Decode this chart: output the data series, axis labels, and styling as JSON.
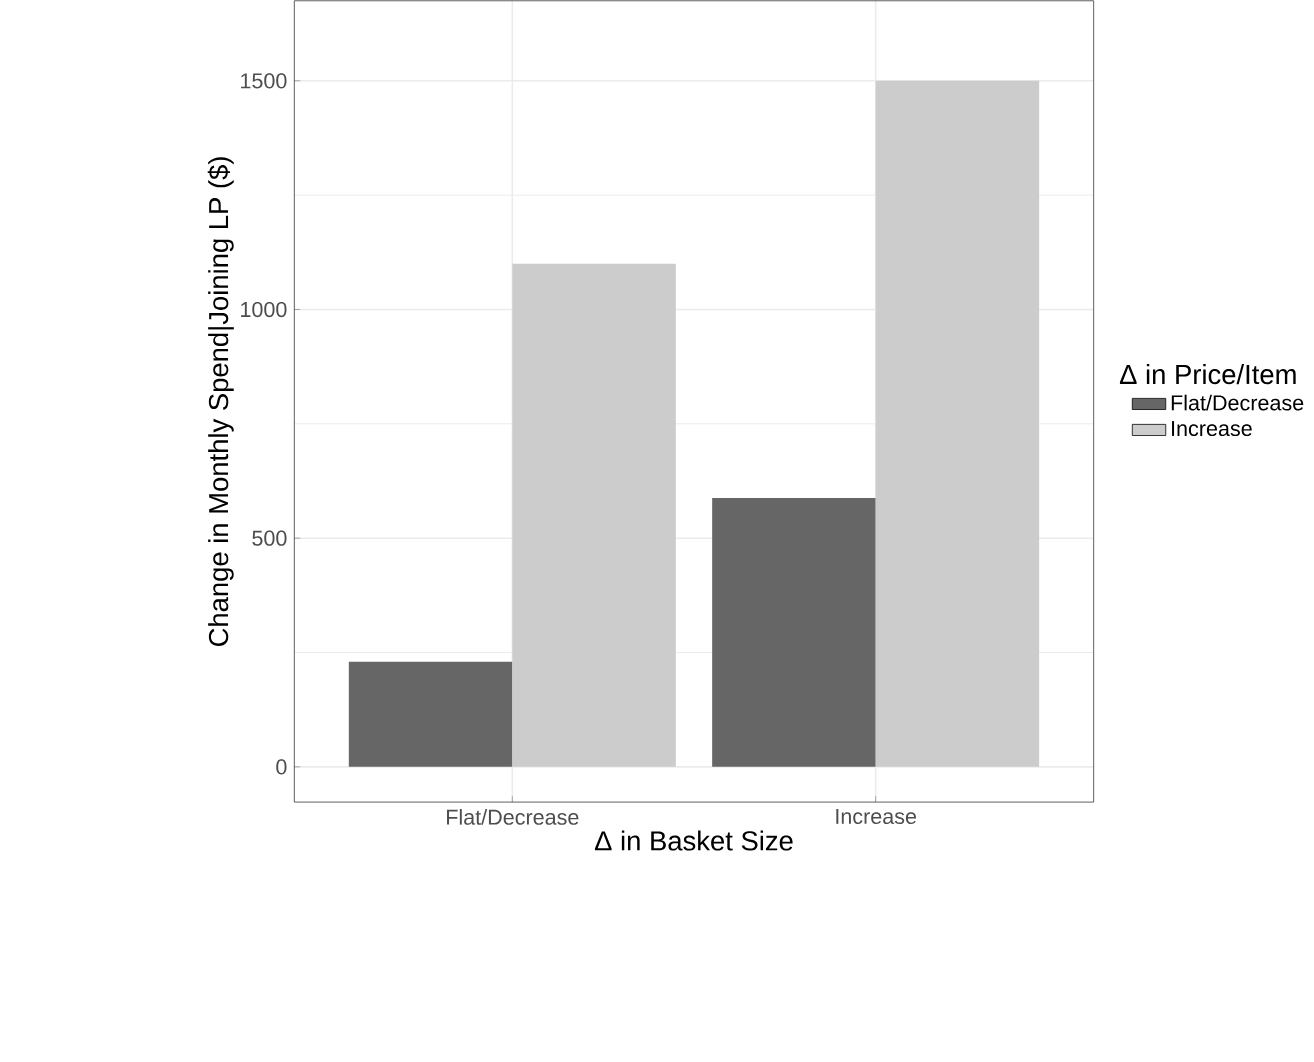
{
  "chart_data": {
    "type": "bar",
    "xlabel": "Δ  in Basket Size",
    "ylabel": "Change in Monthly Spend|Joining LP ($)",
    "legend_title": "Δ  in Price/Item",
    "categories": [
      "Flat/Decrease",
      "Increase"
    ],
    "series": [
      {
        "name": "Flat/Decrease",
        "color": "#666666",
        "values": [
          230,
          588
        ]
      },
      {
        "name": "Increase",
        "color": "#cccccc",
        "values": [
          1100,
          1500
        ]
      }
    ],
    "ylim": [
      -77,
      1675
    ],
    "yticks": [
      0,
      500,
      1000,
      1500
    ],
    "grid": true,
    "legend": "right"
  }
}
